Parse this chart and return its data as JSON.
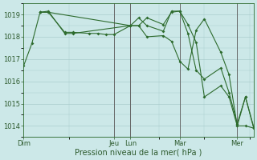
{
  "title": "",
  "xlabel": "Pression niveau de la mer( hPa )",
  "ylabel": "",
  "background_color": "#cce8e8",
  "grid_color": "#aacccc",
  "line_color": "#2d6b2d",
  "ylim": [
    1013.5,
    1019.5
  ],
  "yticks": [
    1014,
    1015,
    1016,
    1017,
    1018,
    1019
  ],
  "xtick_labels": [
    "Dim",
    "Jeu",
    "Lun",
    "Mar",
    "Mer"
  ],
  "xtick_positions": [
    0,
    11,
    13,
    19,
    26
  ],
  "vlines": [
    11,
    13,
    19,
    26
  ],
  "vline_color": "#666666",
  "num_xcols": 28,
  "series": [
    {
      "x": [
        0,
        1,
        2,
        3,
        5,
        6,
        8,
        9,
        10,
        11,
        13,
        14,
        15,
        17,
        18,
        19,
        20,
        21,
        22,
        24,
        25,
        26,
        27,
        28
      ],
      "y": [
        1016.7,
        1017.7,
        1019.1,
        1019.1,
        1018.2,
        1018.2,
        1018.15,
        1018.15,
        1018.1,
        1018.1,
        1018.5,
        1018.5,
        1018.0,
        1018.05,
        1017.8,
        1016.9,
        1016.55,
        1018.3,
        1018.8,
        1017.3,
        1016.3,
        1014.0,
        1014.0,
        1013.9
      ]
    },
    {
      "x": [
        2,
        3,
        5,
        6,
        13,
        14,
        15,
        17,
        18,
        19,
        20,
        21,
        22,
        24,
        25,
        26,
        27,
        28
      ],
      "y": [
        1019.1,
        1019.15,
        1018.15,
        1018.15,
        1018.5,
        1018.85,
        1018.5,
        1018.25,
        1019.15,
        1019.15,
        1018.15,
        1016.5,
        1016.1,
        1016.6,
        1015.5,
        1014.1,
        1015.3,
        1013.9
      ]
    },
    {
      "x": [
        2,
        3,
        13,
        14,
        15,
        17,
        18,
        19,
        20,
        21,
        22,
        24,
        25,
        26,
        27,
        28
      ],
      "y": [
        1019.1,
        1019.1,
        1018.5,
        1018.5,
        1018.85,
        1018.55,
        1019.1,
        1019.15,
        1018.55,
        1017.75,
        1015.3,
        1015.8,
        1015.3,
        1014.0,
        1015.3,
        1013.95
      ]
    }
  ]
}
